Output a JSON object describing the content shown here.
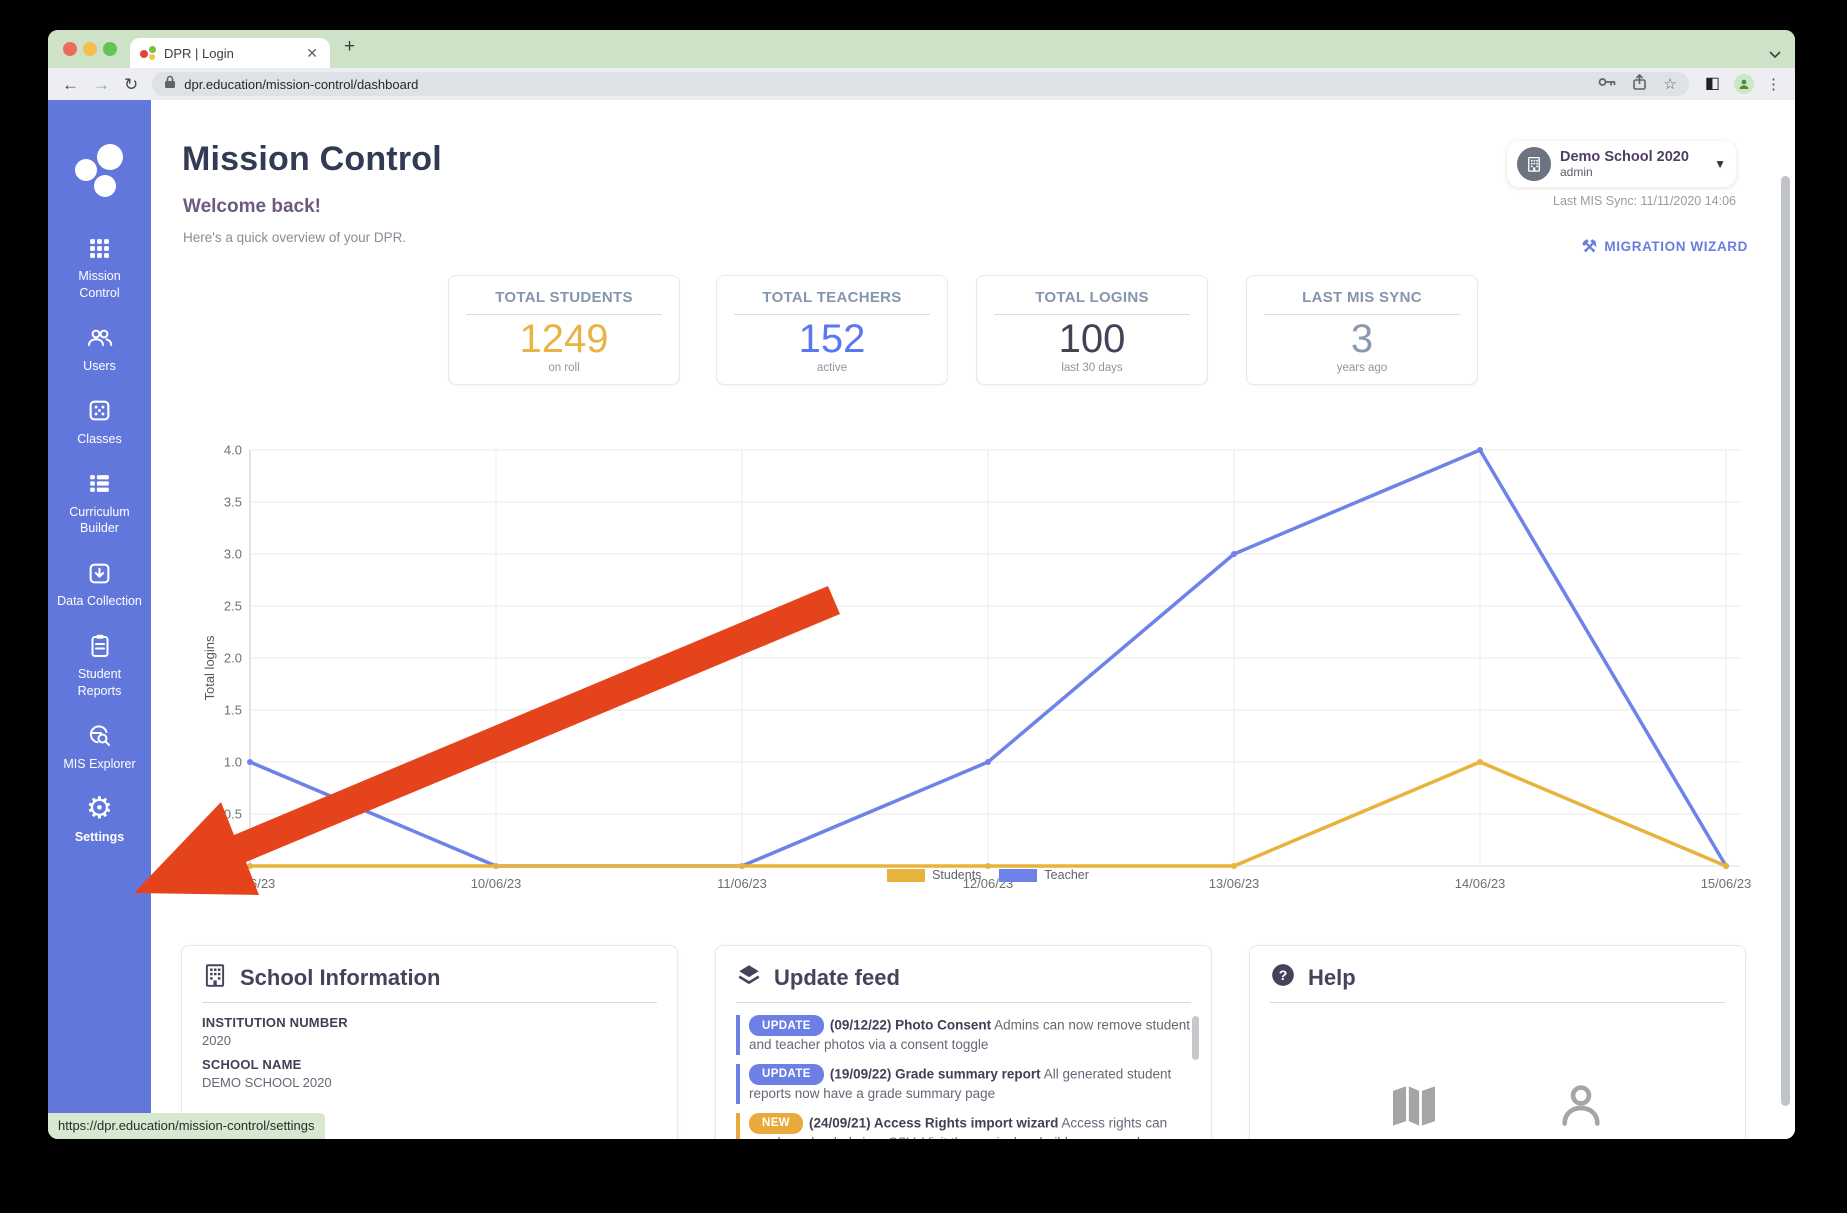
{
  "browser": {
    "tab": {
      "title": "DPR | Login"
    },
    "url": "dpr.education/mission-control/dashboard",
    "status_tooltip": "https://dpr.education/mission-control/settings"
  },
  "sidebar": {
    "items": [
      {
        "label": "Mission Control",
        "icon": "grid-icon"
      },
      {
        "label": "Users",
        "icon": "users-icon"
      },
      {
        "label": "Classes",
        "icon": "dice-icon"
      },
      {
        "label": "Curriculum Builder",
        "icon": "list-icon"
      },
      {
        "label": "Data Collection",
        "icon": "box-download-icon"
      },
      {
        "label": "Student Reports",
        "icon": "clipboard-icon"
      },
      {
        "label": "MIS Explorer",
        "icon": "globe-search-icon"
      },
      {
        "label": "Settings",
        "icon": "gear-icon"
      }
    ]
  },
  "header": {
    "title": "Mission Control",
    "welcome": "Welcome back!",
    "subtitle": "Here's a quick overview of your DPR.",
    "school": {
      "name": "Demo School 2020",
      "role": "admin"
    },
    "last_sync": "Last MIS Sync: 11/11/2020 14:06",
    "migration_wizard": "MIGRATION WIZARD"
  },
  "stats": [
    {
      "title": "TOTAL STUDENTS",
      "value": "1249",
      "sub": "on roll",
      "color": "#e9b445"
    },
    {
      "title": "TOTAL TEACHERS",
      "value": "152",
      "sub": "active",
      "color": "#5b76f1"
    },
    {
      "title": "TOTAL LOGINS",
      "value": "100",
      "sub": "last 30 days",
      "color": "#474057"
    },
    {
      "title": "LAST MIS SYNC",
      "value": "3",
      "sub": "years ago",
      "color": "#8b99ad"
    }
  ],
  "chart_data": {
    "type": "line",
    "ylabel": "Total logins",
    "categories": [
      "09/06/23",
      "10/06/23",
      "11/06/23",
      "12/06/23",
      "13/06/23",
      "14/06/23",
      "15/06/23"
    ],
    "series": [
      {
        "name": "Students",
        "color": "#e8b33c",
        "values": [
          0,
          0,
          0,
          0,
          0,
          1,
          0
        ]
      },
      {
        "name": "Teacher",
        "color": "#6d83ea",
        "values": [
          1,
          0,
          0,
          1,
          3,
          4,
          0
        ]
      }
    ],
    "ylim": [
      0,
      4
    ],
    "yticks": [
      0.5,
      1,
      1.5,
      2,
      2.5,
      3,
      3.5,
      4
    ],
    "grid": true,
    "legend_position": "bottom"
  },
  "panels": {
    "school_info": {
      "title": "School Information",
      "fields": [
        {
          "label": "INSTITUTION NUMBER",
          "value": "2020"
        },
        {
          "label": "SCHOOL NAME",
          "value": "DEMO SCHOOL 2020"
        }
      ]
    },
    "update_feed": {
      "title": "Update feed",
      "items": [
        {
          "badge": "UPDATE",
          "badge_color": "#6c7fe4",
          "heading": "(09/12/22) Photo Consent",
          "text": "Admins can now remove student and teacher photos via a consent toggle"
        },
        {
          "badge": "UPDATE",
          "badge_color": "#6c7fe4",
          "heading": "(19/09/22) Grade summary report",
          "text": "All generated student reports now have a grade summary page"
        },
        {
          "badge": "NEW",
          "badge_color": "#e7aa3b",
          "heading": "(24/09/21) Access Rights import wizard",
          "text": "Access rights can now be uploaded via a CSV. Visit the curriculum builder page and"
        }
      ]
    },
    "help": {
      "title": "Help"
    }
  },
  "colors": {
    "sidebar": "#6277db",
    "arrow": "#e5431c",
    "accent_blue": "#6b7ce0"
  }
}
